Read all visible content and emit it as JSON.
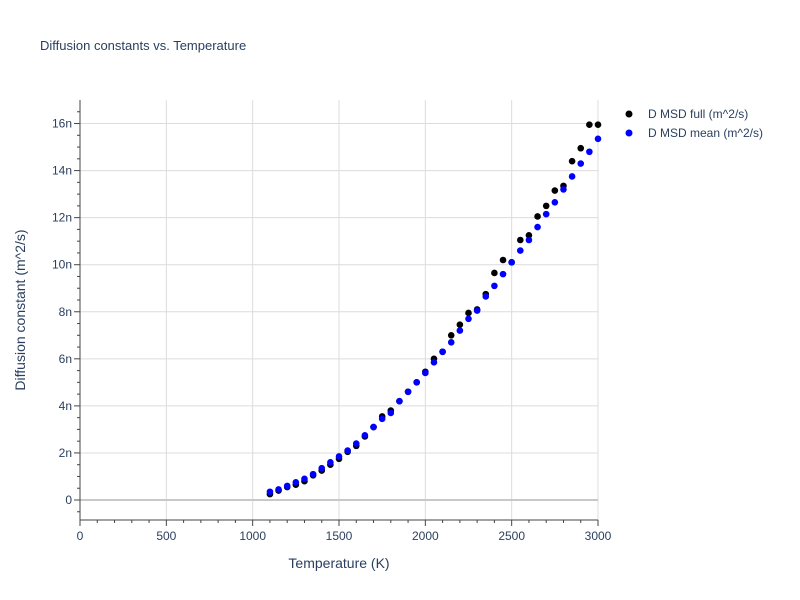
{
  "chart_data": {
    "type": "scatter",
    "title": "Diffusion constants vs. Temperature",
    "xlabel": "Temperature (K)",
    "ylabel": "Diffusion constant (m^2/s)",
    "xlim": [
      0,
      3000
    ],
    "ylim": [
      -0.85,
      17
    ],
    "x_ticks": [
      0,
      500,
      1000,
      1500,
      2000,
      2500,
      3000
    ],
    "x_tick_labels": [
      "0",
      "500",
      "1000",
      "1500",
      "2000",
      "2500",
      "3000"
    ],
    "y_ticks": [
      0,
      2,
      4,
      6,
      8,
      10,
      12,
      14,
      16
    ],
    "y_tick_labels": [
      "0",
      "2n",
      "4n",
      "6n",
      "8n",
      "10n",
      "12n",
      "14n",
      "16n"
    ],
    "y_unit_note": "values in n (1e-9) m^2/s",
    "grid": true,
    "legend_position": "top-right outside",
    "series": [
      {
        "name": "D MSD full (m^2/s)",
        "color": "#000000",
        "x": [
          1100,
          1150,
          1200,
          1250,
          1300,
          1350,
          1400,
          1450,
          1500,
          1550,
          1600,
          1650,
          1700,
          1750,
          1800,
          1850,
          1900,
          1950,
          2000,
          2050,
          2100,
          2150,
          2200,
          2250,
          2300,
          2350,
          2400,
          2450,
          2500,
          2550,
          2600,
          2650,
          2700,
          2750,
          2800,
          2850,
          2900,
          2950,
          3000
        ],
        "y": [
          0.25,
          0.4,
          0.55,
          0.65,
          0.8,
          1.05,
          1.25,
          1.5,
          1.75,
          2.05,
          2.3,
          2.7,
          3.1,
          3.55,
          3.8,
          4.2,
          4.6,
          5.0,
          5.45,
          6.0,
          6.3,
          7.0,
          7.45,
          7.95,
          8.1,
          8.75,
          9.65,
          10.2,
          10.1,
          11.05,
          11.25,
          12.05,
          12.5,
          13.15,
          13.35,
          14.4,
          14.95,
          15.95,
          15.95
        ]
      },
      {
        "name": "D MSD mean (m^2/s)",
        "color": "#0000ff",
        "x": [
          1100,
          1150,
          1200,
          1250,
          1300,
          1350,
          1400,
          1450,
          1500,
          1550,
          1600,
          1650,
          1700,
          1750,
          1800,
          1850,
          1900,
          1950,
          2000,
          2050,
          2100,
          2150,
          2200,
          2250,
          2300,
          2350,
          2400,
          2450,
          2500,
          2550,
          2600,
          2650,
          2700,
          2750,
          2800,
          2850,
          2900,
          2950,
          3000
        ],
        "y": [
          0.35,
          0.45,
          0.6,
          0.75,
          0.9,
          1.1,
          1.35,
          1.6,
          1.85,
          2.1,
          2.4,
          2.75,
          3.1,
          3.45,
          3.7,
          4.2,
          4.6,
          5.0,
          5.4,
          5.85,
          6.3,
          6.7,
          7.2,
          7.7,
          8.05,
          8.65,
          9.1,
          9.6,
          10.1,
          10.6,
          11.05,
          11.6,
          12.15,
          12.65,
          13.2,
          13.75,
          14.3,
          14.8,
          15.35
        ]
      }
    ]
  }
}
